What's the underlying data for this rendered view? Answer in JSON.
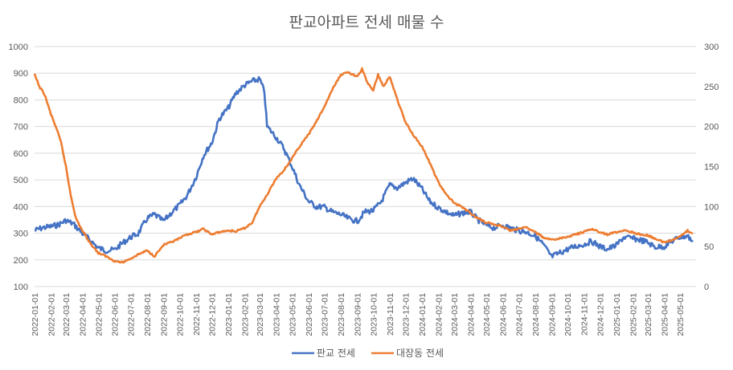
{
  "chart_data": {
    "type": "line",
    "title": "판교아파트 전세 매물 수",
    "left_axis": {
      "min": 100,
      "max": 1000,
      "ticks": [
        100,
        200,
        300,
        400,
        500,
        600,
        700,
        800,
        900,
        1000
      ]
    },
    "right_axis": {
      "min": 0,
      "max": 300,
      "ticks": [
        0,
        50,
        100,
        150,
        200,
        250,
        300
      ]
    },
    "x_ticks": [
      "2022-01-01",
      "2022-02-01",
      "2022-03-01",
      "2022-04-01",
      "2022-05-01",
      "2022-06-01",
      "2022-07-01",
      "2022-08-01",
      "2022-09-01",
      "2022-10-01",
      "2022-11-01",
      "2022-12-01",
      "2023-01-01",
      "2023-02-01",
      "2023-03-01",
      "2023-04-01",
      "2023-05-01",
      "2023-06-01",
      "2023-07-01",
      "2023-08-01",
      "2023-09-01",
      "2023-10-01",
      "2023-11-01",
      "2023-12-01",
      "2024-01-01",
      "2024-02-01",
      "2024-03-01",
      "2024-04-01",
      "2024-05-01",
      "2024-06-01",
      "2024-07-01",
      "2024-08-01",
      "2024-09-01",
      "2024-10-01",
      "2024-11-01",
      "2024-12-01",
      "2025-01-01",
      "2025-02-01",
      "2025-03-01",
      "2025-04-01",
      "2025-05-01"
    ],
    "grid": "horizontal",
    "legend_position": "bottom",
    "series": [
      {
        "name": "판교 전세",
        "axis": "left",
        "color": "#4472C4",
        "points": [
          [
            "2022-01-01",
            310
          ],
          [
            "2022-01-15",
            320
          ],
          [
            "2022-02-01",
            325
          ],
          [
            "2022-02-15",
            332
          ],
          [
            "2022-03-01",
            348
          ],
          [
            "2022-03-15",
            335
          ],
          [
            "2022-04-01",
            300
          ],
          [
            "2022-04-15",
            275
          ],
          [
            "2022-05-01",
            245
          ],
          [
            "2022-05-15",
            235
          ],
          [
            "2022-06-01",
            238
          ],
          [
            "2022-06-15",
            262
          ],
          [
            "2022-07-01",
            285
          ],
          [
            "2022-07-15",
            298
          ],
          [
            "2022-08-01",
            355
          ],
          [
            "2022-08-15",
            370
          ],
          [
            "2022-09-01",
            345
          ],
          [
            "2022-09-15",
            375
          ],
          [
            "2022-10-01",
            405
          ],
          [
            "2022-10-15",
            440
          ],
          [
            "2022-11-01",
            510
          ],
          [
            "2022-11-15",
            590
          ],
          [
            "2022-12-01",
            640
          ],
          [
            "2022-12-15",
            730
          ],
          [
            "2023-01-01",
            770
          ],
          [
            "2023-01-15",
            825
          ],
          [
            "2023-02-01",
            855
          ],
          [
            "2023-02-15",
            870
          ],
          [
            "2023-03-01",
            878
          ],
          [
            "2023-03-10",
            830
          ],
          [
            "2023-03-15",
            700
          ],
          [
            "2023-04-01",
            660
          ],
          [
            "2023-04-15",
            620
          ],
          [
            "2023-05-01",
            550
          ],
          [
            "2023-05-15",
            480
          ],
          [
            "2023-06-01",
            420
          ],
          [
            "2023-06-15",
            400
          ],
          [
            "2023-07-01",
            398
          ],
          [
            "2023-07-15",
            380
          ],
          [
            "2023-08-01",
            370
          ],
          [
            "2023-08-15",
            355
          ],
          [
            "2023-09-01",
            345
          ],
          [
            "2023-09-15",
            380
          ],
          [
            "2023-10-01",
            385
          ],
          [
            "2023-10-15",
            415
          ],
          [
            "2023-11-01",
            480
          ],
          [
            "2023-11-15",
            470
          ],
          [
            "2023-12-01",
            490
          ],
          [
            "2023-12-15",
            505
          ],
          [
            "2024-01-01",
            465
          ],
          [
            "2024-01-15",
            420
          ],
          [
            "2024-02-01",
            395
          ],
          [
            "2024-02-15",
            380
          ],
          [
            "2024-03-01",
            365
          ],
          [
            "2024-03-15",
            375
          ],
          [
            "2024-04-01",
            380
          ],
          [
            "2024-04-15",
            350
          ],
          [
            "2024-05-01",
            330
          ],
          [
            "2024-05-15",
            320
          ],
          [
            "2024-06-01",
            330
          ],
          [
            "2024-06-15",
            320
          ],
          [
            "2024-07-01",
            310
          ],
          [
            "2024-07-15",
            305
          ],
          [
            "2024-08-01",
            290
          ],
          [
            "2024-08-15",
            260
          ],
          [
            "2024-09-01",
            212
          ],
          [
            "2024-09-15",
            225
          ],
          [
            "2024-10-01",
            240
          ],
          [
            "2024-10-15",
            250
          ],
          [
            "2024-11-01",
            258
          ],
          [
            "2024-11-15",
            270
          ],
          [
            "2024-12-01",
            250
          ],
          [
            "2024-12-15",
            240
          ],
          [
            "2025-01-01",
            255
          ],
          [
            "2025-01-15",
            285
          ],
          [
            "2025-02-01",
            280
          ],
          [
            "2025-02-15",
            275
          ],
          [
            "2025-03-01",
            265
          ],
          [
            "2025-03-15",
            248
          ],
          [
            "2025-04-01",
            250
          ],
          [
            "2025-04-15",
            270
          ],
          [
            "2025-05-01",
            285
          ],
          [
            "2025-05-15",
            290
          ],
          [
            "2025-05-25",
            268
          ]
        ]
      },
      {
        "name": "대장동 전세",
        "axis": "right",
        "color": "#ED7D31",
        "points": [
          [
            "2022-01-01",
            265
          ],
          [
            "2022-01-10",
            250
          ],
          [
            "2022-01-20",
            240
          ],
          [
            "2022-02-01",
            215
          ],
          [
            "2022-02-10",
            200
          ],
          [
            "2022-02-20",
            180
          ],
          [
            "2022-03-01",
            150
          ],
          [
            "2022-03-10",
            115
          ],
          [
            "2022-03-20",
            85
          ],
          [
            "2022-04-01",
            70
          ],
          [
            "2022-04-15",
            55
          ],
          [
            "2022-05-01",
            42
          ],
          [
            "2022-05-15",
            38
          ],
          [
            "2022-06-01",
            32
          ],
          [
            "2022-06-15",
            30
          ],
          [
            "2022-07-01",
            35
          ],
          [
            "2022-07-15",
            40
          ],
          [
            "2022-08-01",
            45
          ],
          [
            "2022-08-15",
            38
          ],
          [
            "2022-09-01",
            52
          ],
          [
            "2022-09-15",
            55
          ],
          [
            "2022-10-01",
            60
          ],
          [
            "2022-10-15",
            65
          ],
          [
            "2022-11-01",
            68
          ],
          [
            "2022-11-15",
            72
          ],
          [
            "2022-12-01",
            65
          ],
          [
            "2022-12-15",
            68
          ],
          [
            "2023-01-01",
            70
          ],
          [
            "2023-01-15",
            69
          ],
          [
            "2023-02-01",
            73
          ],
          [
            "2023-02-15",
            80
          ],
          [
            "2023-03-01",
            100
          ],
          [
            "2023-03-15",
            115
          ],
          [
            "2023-04-01",
            135
          ],
          [
            "2023-04-15",
            145
          ],
          [
            "2023-05-01",
            160
          ],
          [
            "2023-05-15",
            175
          ],
          [
            "2023-06-01",
            190
          ],
          [
            "2023-06-15",
            205
          ],
          [
            "2023-07-01",
            225
          ],
          [
            "2023-07-15",
            245
          ],
          [
            "2023-08-01",
            265
          ],
          [
            "2023-08-15",
            268
          ],
          [
            "2023-09-01",
            262
          ],
          [
            "2023-09-10",
            272
          ],
          [
            "2023-09-20",
            255
          ],
          [
            "2023-10-01",
            245
          ],
          [
            "2023-10-10",
            265
          ],
          [
            "2023-10-20",
            250
          ],
          [
            "2023-11-01",
            262
          ],
          [
            "2023-11-10",
            245
          ],
          [
            "2023-11-20",
            225
          ],
          [
            "2023-12-01",
            205
          ],
          [
            "2023-12-15",
            190
          ],
          [
            "2024-01-01",
            175
          ],
          [
            "2024-01-15",
            155
          ],
          [
            "2024-02-01",
            130
          ],
          [
            "2024-02-15",
            115
          ],
          [
            "2024-03-01",
            105
          ],
          [
            "2024-03-15",
            100
          ],
          [
            "2024-04-01",
            92
          ],
          [
            "2024-04-15",
            85
          ],
          [
            "2024-05-01",
            80
          ],
          [
            "2024-05-15",
            78
          ],
          [
            "2024-06-01",
            75
          ],
          [
            "2024-06-15",
            70
          ],
          [
            "2024-07-01",
            72
          ],
          [
            "2024-07-15",
            74
          ],
          [
            "2024-08-01",
            68
          ],
          [
            "2024-08-15",
            62
          ],
          [
            "2024-09-01",
            58
          ],
          [
            "2024-09-15",
            60
          ],
          [
            "2024-10-01",
            62
          ],
          [
            "2024-10-15",
            65
          ],
          [
            "2024-11-01",
            68
          ],
          [
            "2024-11-15",
            72
          ],
          [
            "2024-12-01",
            68
          ],
          [
            "2024-12-15",
            65
          ],
          [
            "2025-01-01",
            68
          ],
          [
            "2025-01-15",
            70
          ],
          [
            "2025-02-01",
            68
          ],
          [
            "2025-02-15",
            65
          ],
          [
            "2025-03-01",
            64
          ],
          [
            "2025-03-15",
            60
          ],
          [
            "2025-04-01",
            55
          ],
          [
            "2025-04-15",
            58
          ],
          [
            "2025-05-01",
            62
          ],
          [
            "2025-05-15",
            70
          ],
          [
            "2025-05-25",
            66
          ]
        ]
      }
    ]
  }
}
